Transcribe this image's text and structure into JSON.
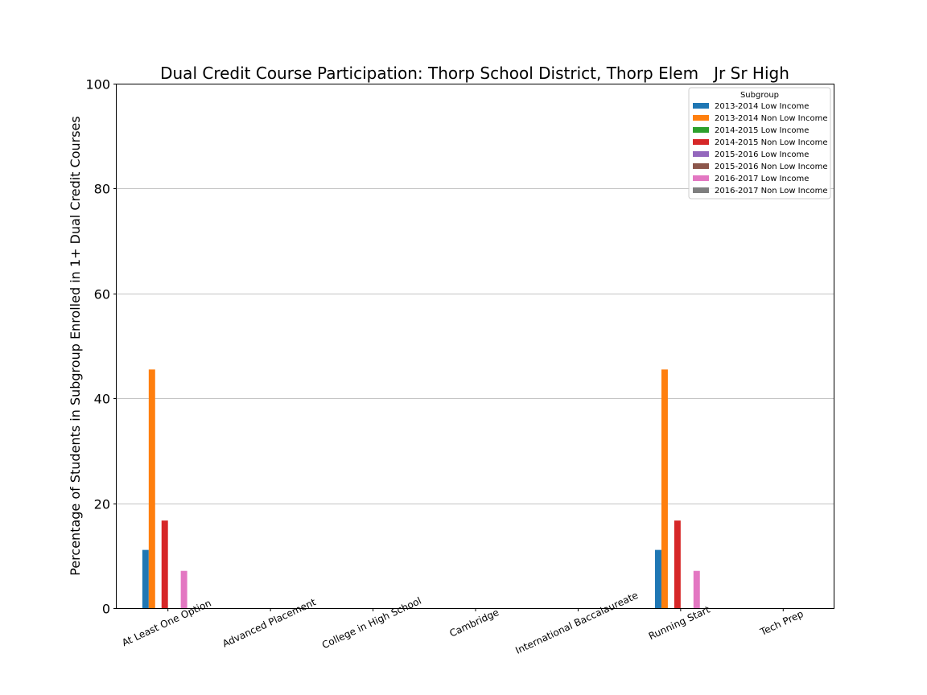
{
  "chart_data": {
    "type": "bar",
    "title": "Dual Credit Course Participation: Thorp School District, Thorp Elem   Jr Sr High",
    "xlabel": "",
    "ylabel": "Percentage of Students in Subgroup Enrolled in 1+ Dual Credit Courses",
    "ylim": [
      0,
      100
    ],
    "yticks": [
      0,
      20,
      40,
      60,
      80,
      100
    ],
    "grid": true,
    "legend_title": "Subgroup",
    "legend_position": "top-right",
    "categories": [
      "At Least One Option",
      "Advanced Placement",
      "College in High School",
      "Cambridge",
      "International Baccalaureate",
      "Running Start",
      "Tech Prep"
    ],
    "series": [
      {
        "name": "2013-2014 Low Income",
        "color": "#1f77b4",
        "values": [
          11.1,
          0,
          0,
          0,
          0,
          11.1,
          0
        ]
      },
      {
        "name": "2013-2014 Non Low Income",
        "color": "#ff7f0e",
        "values": [
          45.5,
          0,
          0,
          0,
          0,
          45.5,
          0
        ]
      },
      {
        "name": "2014-2015 Low Income",
        "color": "#2ca02c",
        "values": [
          0,
          0,
          0,
          0,
          0,
          0,
          0
        ]
      },
      {
        "name": "2014-2015 Non Low Income",
        "color": "#d62728",
        "values": [
          16.7,
          0,
          0,
          0,
          0,
          16.7,
          0
        ]
      },
      {
        "name": "2015-2016 Low Income",
        "color": "#9467bd",
        "values": [
          0,
          0,
          0,
          0,
          0,
          0,
          0
        ]
      },
      {
        "name": "2015-2016 Non Low Income",
        "color": "#8c564b",
        "values": [
          0,
          0,
          0,
          0,
          0,
          0,
          0
        ]
      },
      {
        "name": "2016-2017 Low Income",
        "color": "#e377c2",
        "values": [
          7.1,
          0,
          0,
          0,
          0,
          7.1,
          0
        ]
      },
      {
        "name": "2016-2017 Non Low Income",
        "color": "#7f7f7f",
        "values": [
          0,
          0,
          0,
          0,
          0,
          0,
          0
        ]
      }
    ]
  }
}
